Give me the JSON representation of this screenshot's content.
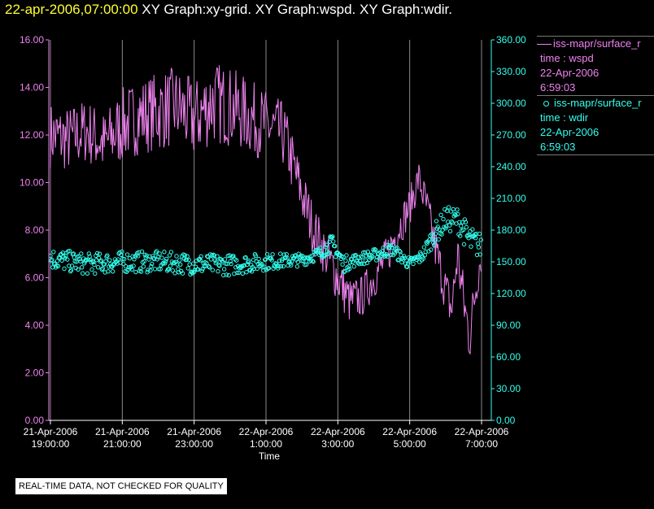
{
  "header": {
    "time": "22-apr-2006,07:00:00",
    "graphs": "XY Graph:xy-grid.  XY Graph:wspd.  XY Graph:wdir."
  },
  "disclaimer": "REAL-TIME DATA, NOT CHECKED FOR QUALITY",
  "legend": [
    {
      "name": "iss-mapr/surface_r",
      "var": "time : wspd",
      "date": "22-Apr-2006",
      "time": "6:59:03",
      "color": "#ee82ee",
      "symbol": "line"
    },
    {
      "name": "iss-mapr/surface_r",
      "var": "time : wdir",
      "date": "22-Apr-2006",
      "time": "6:59:03",
      "color": "#33ffee",
      "symbol": "circle"
    }
  ],
  "chart_data": {
    "type": "line",
    "xlabel": "Time",
    "x_start": "21-Apr-2006 19:00:00",
    "x_end": "22-Apr-2006 07:00:00",
    "x_ticks": [
      {
        "date": "21-Apr-2006",
        "time": "19:00:00"
      },
      {
        "date": "21-Apr-2006",
        "time": "21:00:00"
      },
      {
        "date": "21-Apr-2006",
        "time": "23:00:00"
      },
      {
        "date": "22-Apr-2006",
        "time": "1:00:00"
      },
      {
        "date": "22-Apr-2006",
        "time": "3:00:00"
      },
      {
        "date": "22-Apr-2006",
        "time": "5:00:00"
      },
      {
        "date": "22-Apr-2006",
        "time": "7:00:00"
      }
    ],
    "y_left": {
      "ylim": [
        0,
        16
      ],
      "ticks": [
        "0.00",
        "2.00",
        "4.00",
        "6.00",
        "8.00",
        "10.00",
        "12.00",
        "14.00",
        "16.00"
      ]
    },
    "y_right": {
      "ylim": [
        0,
        360
      ],
      "ticks": [
        "0.00",
        "30.00",
        "60.00",
        "90.00",
        "120.00",
        "150.00",
        "180.00",
        "210.00",
        "240.00",
        "270.00",
        "300.00",
        "330.00",
        "360.00"
      ]
    },
    "grid": "vertical",
    "legend_position": "right",
    "series": [
      {
        "axis": "left",
        "style": "line",
        "color": "#ee82ee",
        "times": [
          "21-Apr-2006 19:00:00",
          "21-Apr-2006 19:30:00",
          "21-Apr-2006 20:00:00",
          "21-Apr-2006 20:30:00",
          "21-Apr-2006 21:00:00",
          "21-Apr-2006 21:30:00",
          "21-Apr-2006 22:00:00",
          "21-Apr-2006 22:30:00",
          "21-Apr-2006 23:00:00",
          "21-Apr-2006 23:30:00",
          "22-Apr-2006 00:00:00",
          "22-Apr-2006 00:30:00",
          "22-Apr-2006 01:00:00",
          "22-Apr-2006 01:30:00",
          "22-Apr-2006 02:00:00",
          "22-Apr-2006 02:20:00",
          "22-Apr-2006 02:40:00",
          "22-Apr-2006 03:00:00",
          "22-Apr-2006 03:20:00",
          "22-Apr-2006 03:40:00",
          "22-Apr-2006 04:00:00",
          "22-Apr-2006 04:20:00",
          "22-Apr-2006 04:40:00",
          "22-Apr-2006 05:00:00",
          "22-Apr-2006 05:15:00",
          "22-Apr-2006 05:30:00",
          "22-Apr-2006 05:45:00",
          "22-Apr-2006 06:00:00",
          "22-Apr-2006 06:10:00",
          "22-Apr-2006 06:20:00",
          "22-Apr-2006 06:30:00",
          "22-Apr-2006 06:40:00",
          "22-Apr-2006 06:50:00",
          "22-Apr-2006 06:59:00"
        ],
        "values": [
          12.0,
          11.8,
          12.2,
          11.6,
          12.4,
          12.8,
          13.0,
          13.2,
          12.6,
          13.4,
          13.2,
          12.8,
          12.4,
          12.0,
          9.5,
          8.0,
          7.0,
          6.0,
          5.0,
          5.2,
          6.0,
          6.8,
          8.0,
          9.0,
          10.2,
          8.8,
          7.0,
          5.5,
          4.6,
          7.0,
          5.0,
          3.5,
          5.5,
          7.0
        ],
        "spread": [
          1.4,
          1.4,
          1.4,
          1.4,
          1.6,
          1.6,
          1.7,
          1.7,
          1.7,
          1.8,
          1.7,
          1.6,
          1.5,
          1.4,
          1.2,
          1.1,
          1.0,
          1.1,
          1.0,
          0.9,
          0.9,
          0.9,
          0.9,
          0.8,
          0.8,
          0.9,
          1.0,
          1.0,
          1.0,
          1.2,
          1.2,
          1.2,
          1.0,
          0.9
        ]
      },
      {
        "axis": "right",
        "style": "circle",
        "color": "#33ffee",
        "times": [
          "21-Apr-2006 19:00:00",
          "21-Apr-2006 20:00:00",
          "21-Apr-2006 21:00:00",
          "21-Apr-2006 22:00:00",
          "21-Apr-2006 23:00:00",
          "22-Apr-2006 00:00:00",
          "22-Apr-2006 01:00:00",
          "22-Apr-2006 02:00:00",
          "22-Apr-2006 02:30:00",
          "22-Apr-2006 02:50:00",
          "22-Apr-2006 03:10:00",
          "22-Apr-2006 03:30:00",
          "22-Apr-2006 04:00:00",
          "22-Apr-2006 04:30:00",
          "22-Apr-2006 05:00:00",
          "22-Apr-2006 05:20:00",
          "22-Apr-2006 05:40:00",
          "22-Apr-2006 06:00:00",
          "22-Apr-2006 06:20:00",
          "22-Apr-2006 06:40:00",
          "22-Apr-2006 06:59:00"
        ],
        "values": [
          153,
          148,
          150,
          150,
          148,
          147,
          150,
          152,
          158,
          168,
          148,
          152,
          156,
          162,
          148,
          155,
          175,
          190,
          190,
          170,
          165
        ],
        "spread": [
          10,
          10,
          10,
          10,
          10,
          10,
          8,
          6,
          6,
          8,
          8,
          6,
          6,
          6,
          6,
          6,
          10,
          12,
          12,
          14,
          12
        ]
      }
    ]
  }
}
